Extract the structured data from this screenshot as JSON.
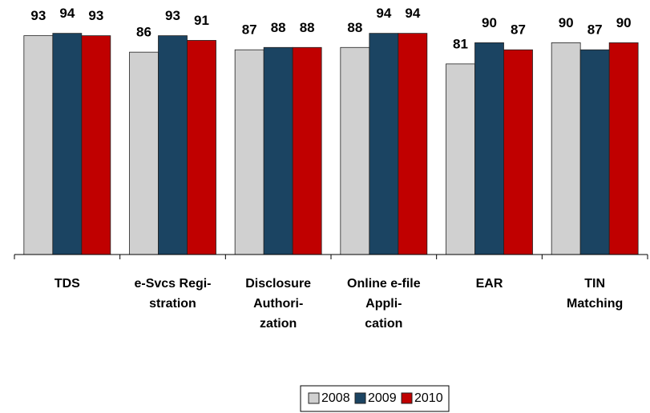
{
  "chart_data": {
    "type": "bar",
    "categories": [
      [
        "TDS"
      ],
      [
        "e-Svcs Regi-",
        "stration"
      ],
      [
        "Disclosure",
        "Authori-",
        "zation"
      ],
      [
        "Online e-file",
        "Appli-",
        "cation"
      ],
      [
        "EAR"
      ],
      [
        "TIN",
        "Matching"
      ]
    ],
    "series": [
      {
        "name": "2008",
        "color": "#d0d0d0",
        "values": [
          93,
          86,
          87,
          88,
          81,
          90
        ]
      },
      {
        "name": "2009",
        "color": "#1b4462",
        "values": [
          94,
          93,
          88,
          94,
          90,
          87
        ]
      },
      {
        "name": "2010",
        "color": "#c00000",
        "values": [
          93,
          91,
          88,
          94,
          87,
          90
        ]
      }
    ],
    "ylim": [
      0,
      100
    ],
    "legend": "bottom"
  }
}
